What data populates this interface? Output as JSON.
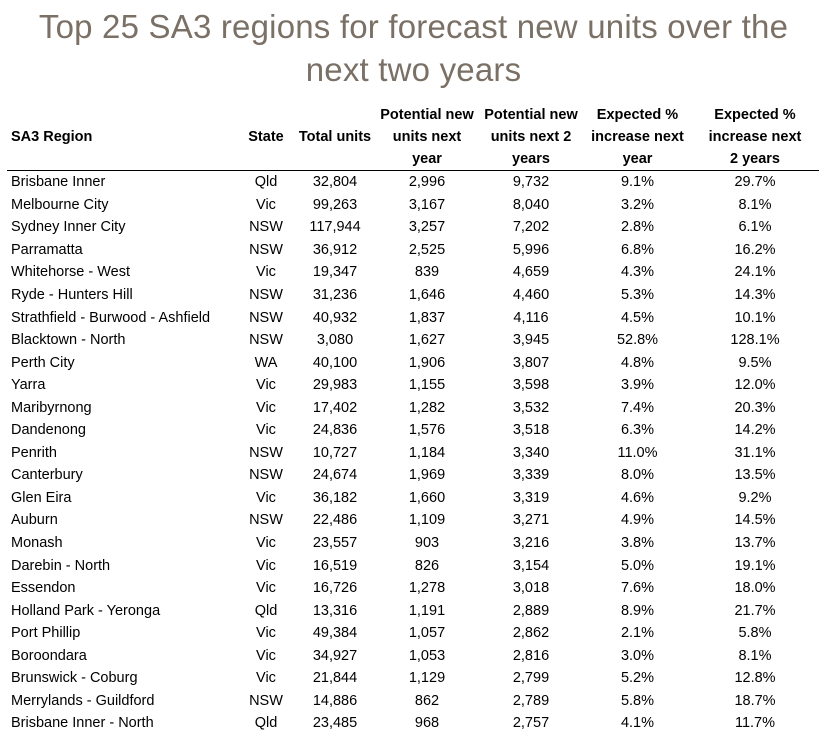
{
  "title_line1": "Top 25 SA3 regions for forecast new units over the",
  "title_line2": "next two years",
  "table": {
    "headers": {
      "region": "SA3 Region",
      "state": "State",
      "total": "Total units",
      "pn1": [
        "Potential new",
        "units next",
        "year"
      ],
      "pn2": [
        "Potential new",
        "units next 2",
        "years"
      ],
      "e1": [
        "Expected %",
        "increase next",
        "year"
      ],
      "e2": [
        "Expected %",
        "increase next",
        "2 years"
      ]
    },
    "rows": [
      [
        "Brisbane Inner",
        "Qld",
        "32,804",
        "2,996",
        "9,732",
        "9.1%",
        "29.7%"
      ],
      [
        "Melbourne City",
        "Vic",
        "99,263",
        "3,167",
        "8,040",
        "3.2%",
        "8.1%"
      ],
      [
        "Sydney Inner City",
        "NSW",
        "117,944",
        "3,257",
        "7,202",
        "2.8%",
        "6.1%"
      ],
      [
        "Parramatta",
        "NSW",
        "36,912",
        "2,525",
        "5,996",
        "6.8%",
        "16.2%"
      ],
      [
        "Whitehorse - West",
        "Vic",
        "19,347",
        "839",
        "4,659",
        "4.3%",
        "24.1%"
      ],
      [
        "Ryde - Hunters Hill",
        "NSW",
        "31,236",
        "1,646",
        "4,460",
        "5.3%",
        "14.3%"
      ],
      [
        "Strathfield - Burwood - Ashfield",
        "NSW",
        "40,932",
        "1,837",
        "4,116",
        "4.5%",
        "10.1%"
      ],
      [
        "Blacktown - North",
        "NSW",
        "3,080",
        "1,627",
        "3,945",
        "52.8%",
        "128.1%"
      ],
      [
        "Perth City",
        "WA",
        "40,100",
        "1,906",
        "3,807",
        "4.8%",
        "9.5%"
      ],
      [
        "Yarra",
        "Vic",
        "29,983",
        "1,155",
        "3,598",
        "3.9%",
        "12.0%"
      ],
      [
        "Maribyrnong",
        "Vic",
        "17,402",
        "1,282",
        "3,532",
        "7.4%",
        "20.3%"
      ],
      [
        "Dandenong",
        "Vic",
        "24,836",
        "1,576",
        "3,518",
        "6.3%",
        "14.2%"
      ],
      [
        "Penrith",
        "NSW",
        "10,727",
        "1,184",
        "3,340",
        "11.0%",
        "31.1%"
      ],
      [
        "Canterbury",
        "NSW",
        "24,674",
        "1,969",
        "3,339",
        "8.0%",
        "13.5%"
      ],
      [
        "Glen Eira",
        "Vic",
        "36,182",
        "1,660",
        "3,319",
        "4.6%",
        "9.2%"
      ],
      [
        "Auburn",
        "NSW",
        "22,486",
        "1,109",
        "3,271",
        "4.9%",
        "14.5%"
      ],
      [
        "Monash",
        "Vic",
        "23,557",
        "903",
        "3,216",
        "3.8%",
        "13.7%"
      ],
      [
        "Darebin - North",
        "Vic",
        "16,519",
        "826",
        "3,154",
        "5.0%",
        "19.1%"
      ],
      [
        "Essendon",
        "Vic",
        "16,726",
        "1,278",
        "3,018",
        "7.6%",
        "18.0%"
      ],
      [
        "Holland Park - Yeronga",
        "Qld",
        "13,316",
        "1,191",
        "2,889",
        "8.9%",
        "21.7%"
      ],
      [
        "Port Phillip",
        "Vic",
        "49,384",
        "1,057",
        "2,862",
        "2.1%",
        "5.8%"
      ],
      [
        "Boroondara",
        "Vic",
        "34,927",
        "1,053",
        "2,816",
        "3.0%",
        "8.1%"
      ],
      [
        "Brunswick - Coburg",
        "Vic",
        "21,844",
        "1,129",
        "2,799",
        "5.2%",
        "12.8%"
      ],
      [
        "Merrylands - Guildford",
        "NSW",
        "14,886",
        "862",
        "2,789",
        "5.8%",
        "18.7%"
      ],
      [
        "Brisbane Inner - North",
        "Qld",
        "23,485",
        "968",
        "2,757",
        "4.1%",
        "11.7%"
      ]
    ]
  }
}
